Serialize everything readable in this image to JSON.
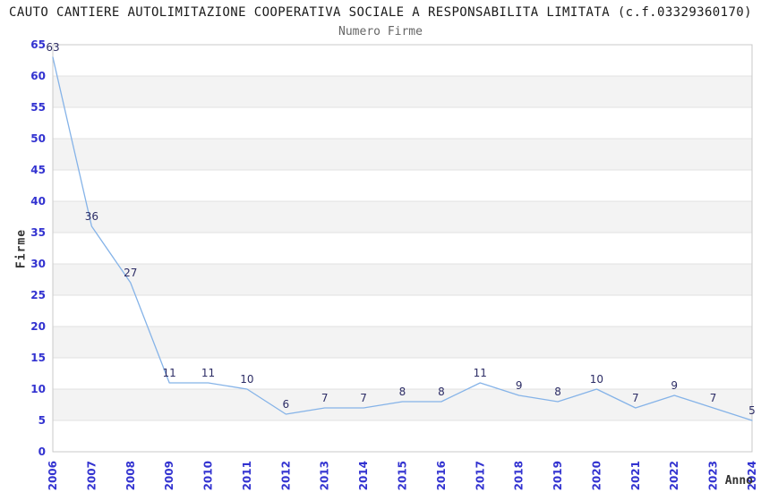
{
  "chart_data": {
    "type": "line",
    "title": "CAUTO CANTIERE AUTOLIMITAZIONE COOPERATIVA SOCIALE A RESPONSABILITA LIMITATA (c.f.03329360170)",
    "subtitle": "Numero Firme",
    "xlabel": "Anno",
    "ylabel": "Firme",
    "x": [
      2006,
      2007,
      2008,
      2009,
      2010,
      2011,
      2012,
      2013,
      2014,
      2015,
      2016,
      2017,
      2018,
      2019,
      2020,
      2021,
      2022,
      2023,
      2024
    ],
    "series": [
      {
        "name": "Numero Firme",
        "values": [
          63,
          36,
          27,
          11,
          11,
          10,
          6,
          7,
          7,
          8,
          8,
          11,
          9,
          8,
          10,
          7,
          9,
          7,
          5
        ]
      }
    ],
    "ylim": [
      0,
      65
    ],
    "ytick_step": 5,
    "grid": "horizontal",
    "alternating_bands": true,
    "legend_position": "none",
    "point_labels": true,
    "colors": {
      "line": "#85b3e8",
      "tick_label": "#3232d0",
      "point_label": "#2d2d66",
      "band": "#f3f3f3",
      "gridline": "#e2e2e2",
      "border": "#c9c9c9",
      "axis_label": "#333333",
      "title": "#1a1a1a",
      "subtitle": "#666666",
      "background": "#ffffff"
    }
  }
}
